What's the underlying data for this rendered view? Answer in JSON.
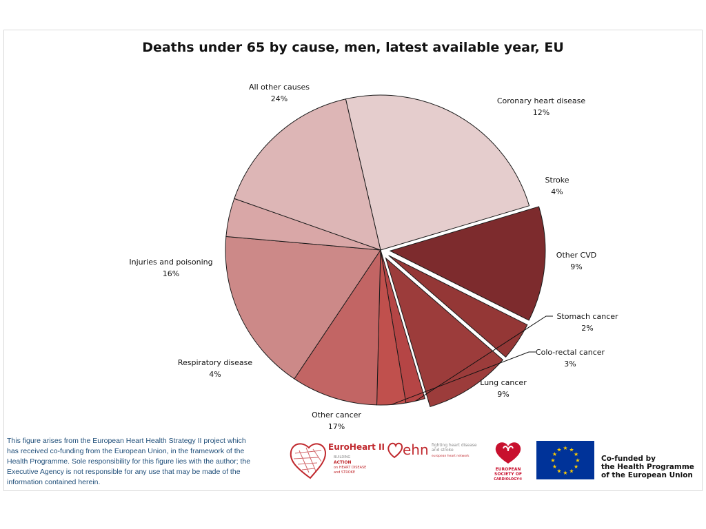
{
  "chart_data": {
    "type": "pie",
    "title": "Deaths under 65 by cause, men, latest available year, EU",
    "slices": [
      {
        "label": "All other causes",
        "value_label": "24%",
        "value": 24,
        "color": "#e5cdcd",
        "exploded": false
      },
      {
        "label": "Coronary heart disease",
        "value_label": "12%",
        "value": 12,
        "color": "#7d2b2d",
        "exploded": true
      },
      {
        "label": "Stroke",
        "value_label": "4%",
        "value": 4,
        "color": "#943736",
        "exploded": true
      },
      {
        "label": "Other CVD",
        "value_label": "9%",
        "value": 9,
        "color": "#9c3c3b",
        "exploded": true
      },
      {
        "label": "Stomach cancer",
        "value_label": "2%",
        "value": 2,
        "color": "#b54545",
        "exploded": false
      },
      {
        "label": "Colo-rectal cancer",
        "value_label": "3%",
        "value": 3,
        "color": "#c0504d",
        "exploded": false
      },
      {
        "label": "Lung cancer",
        "value_label": "9%",
        "value": 9,
        "color": "#c26564",
        "exploded": false
      },
      {
        "label": "Other cancer",
        "value_label": "17%",
        "value": 17,
        "color": "#cc8988",
        "exploded": false
      },
      {
        "label": "Respiratory disease",
        "value_label": "4%",
        "value": 4,
        "color": "#d9a7a7",
        "exploded": false
      },
      {
        "label": "Injuries and  poisoning",
        "value_label": "16%",
        "value": 16,
        "color": "#ddb6b6",
        "exploded": false
      }
    ]
  },
  "footnote": "This figure arises from the European Heart Health Strategy II project which has received co-funding from the European Union, in the framework of the Health Programme. Sole responsibility for this figure lies with the author; the Executive Agency is not responsible for any use that may be made of the information contained herein.",
  "logos": {
    "euroheart_title": "EuroHeart II",
    "euroheart_sub1": "BUILDING",
    "euroheart_sub2": "ACTION",
    "euroheart_sub3": "on HEART DISEASE",
    "euroheart_sub4": "and STROKE",
    "ehn_name": "ehn",
    "ehn_tagline1": "fighting heart disease",
    "ehn_tagline2": "and stroke",
    "ehn_tagline3": "european heart network",
    "esc_line1": "EUROPEAN",
    "esc_line2": "SOCIETY OF",
    "esc_line3": "CARDIOLOGY®"
  },
  "cofunded": {
    "line1": "Co-funded by",
    "line2": "the Health Programme",
    "line3": "of the European Union"
  },
  "colors": {
    "footnote_text": "#1f4e79",
    "eu_flag_blue": "#003399",
    "eu_star": "#ffcc00",
    "esc_red": "#c8102e"
  }
}
